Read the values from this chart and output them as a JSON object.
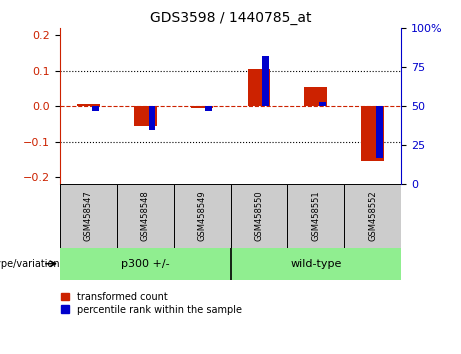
{
  "title": "GDS3598 / 1440785_at",
  "samples": [
    "GSM458547",
    "GSM458548",
    "GSM458549",
    "GSM458550",
    "GSM458551",
    "GSM458552"
  ],
  "red_values": [
    0.005,
    -0.055,
    -0.005,
    0.105,
    0.055,
    -0.155
  ],
  "blue_pct": [
    47,
    35,
    47,
    82,
    53,
    17
  ],
  "ylim_left": [
    -0.22,
    0.22
  ],
  "ylim_right": [
    0,
    100
  ],
  "yticks_left": [
    -0.2,
    -0.1,
    0.0,
    0.1,
    0.2
  ],
  "yticks_right": [
    0,
    25,
    50,
    75,
    100
  ],
  "red_color": "#CC2200",
  "blue_color": "#0000CC",
  "hline_color": "#CC2200",
  "group_labels": [
    "p300 +/-",
    "wild-type"
  ],
  "group_colors": [
    "#90EE90",
    "#90EE90"
  ],
  "legend_red": "transformed count",
  "legend_blue": "percentile rank within the sample",
  "xlabel": "genotype/variation",
  "label_area_color": "#CCCCCC"
}
